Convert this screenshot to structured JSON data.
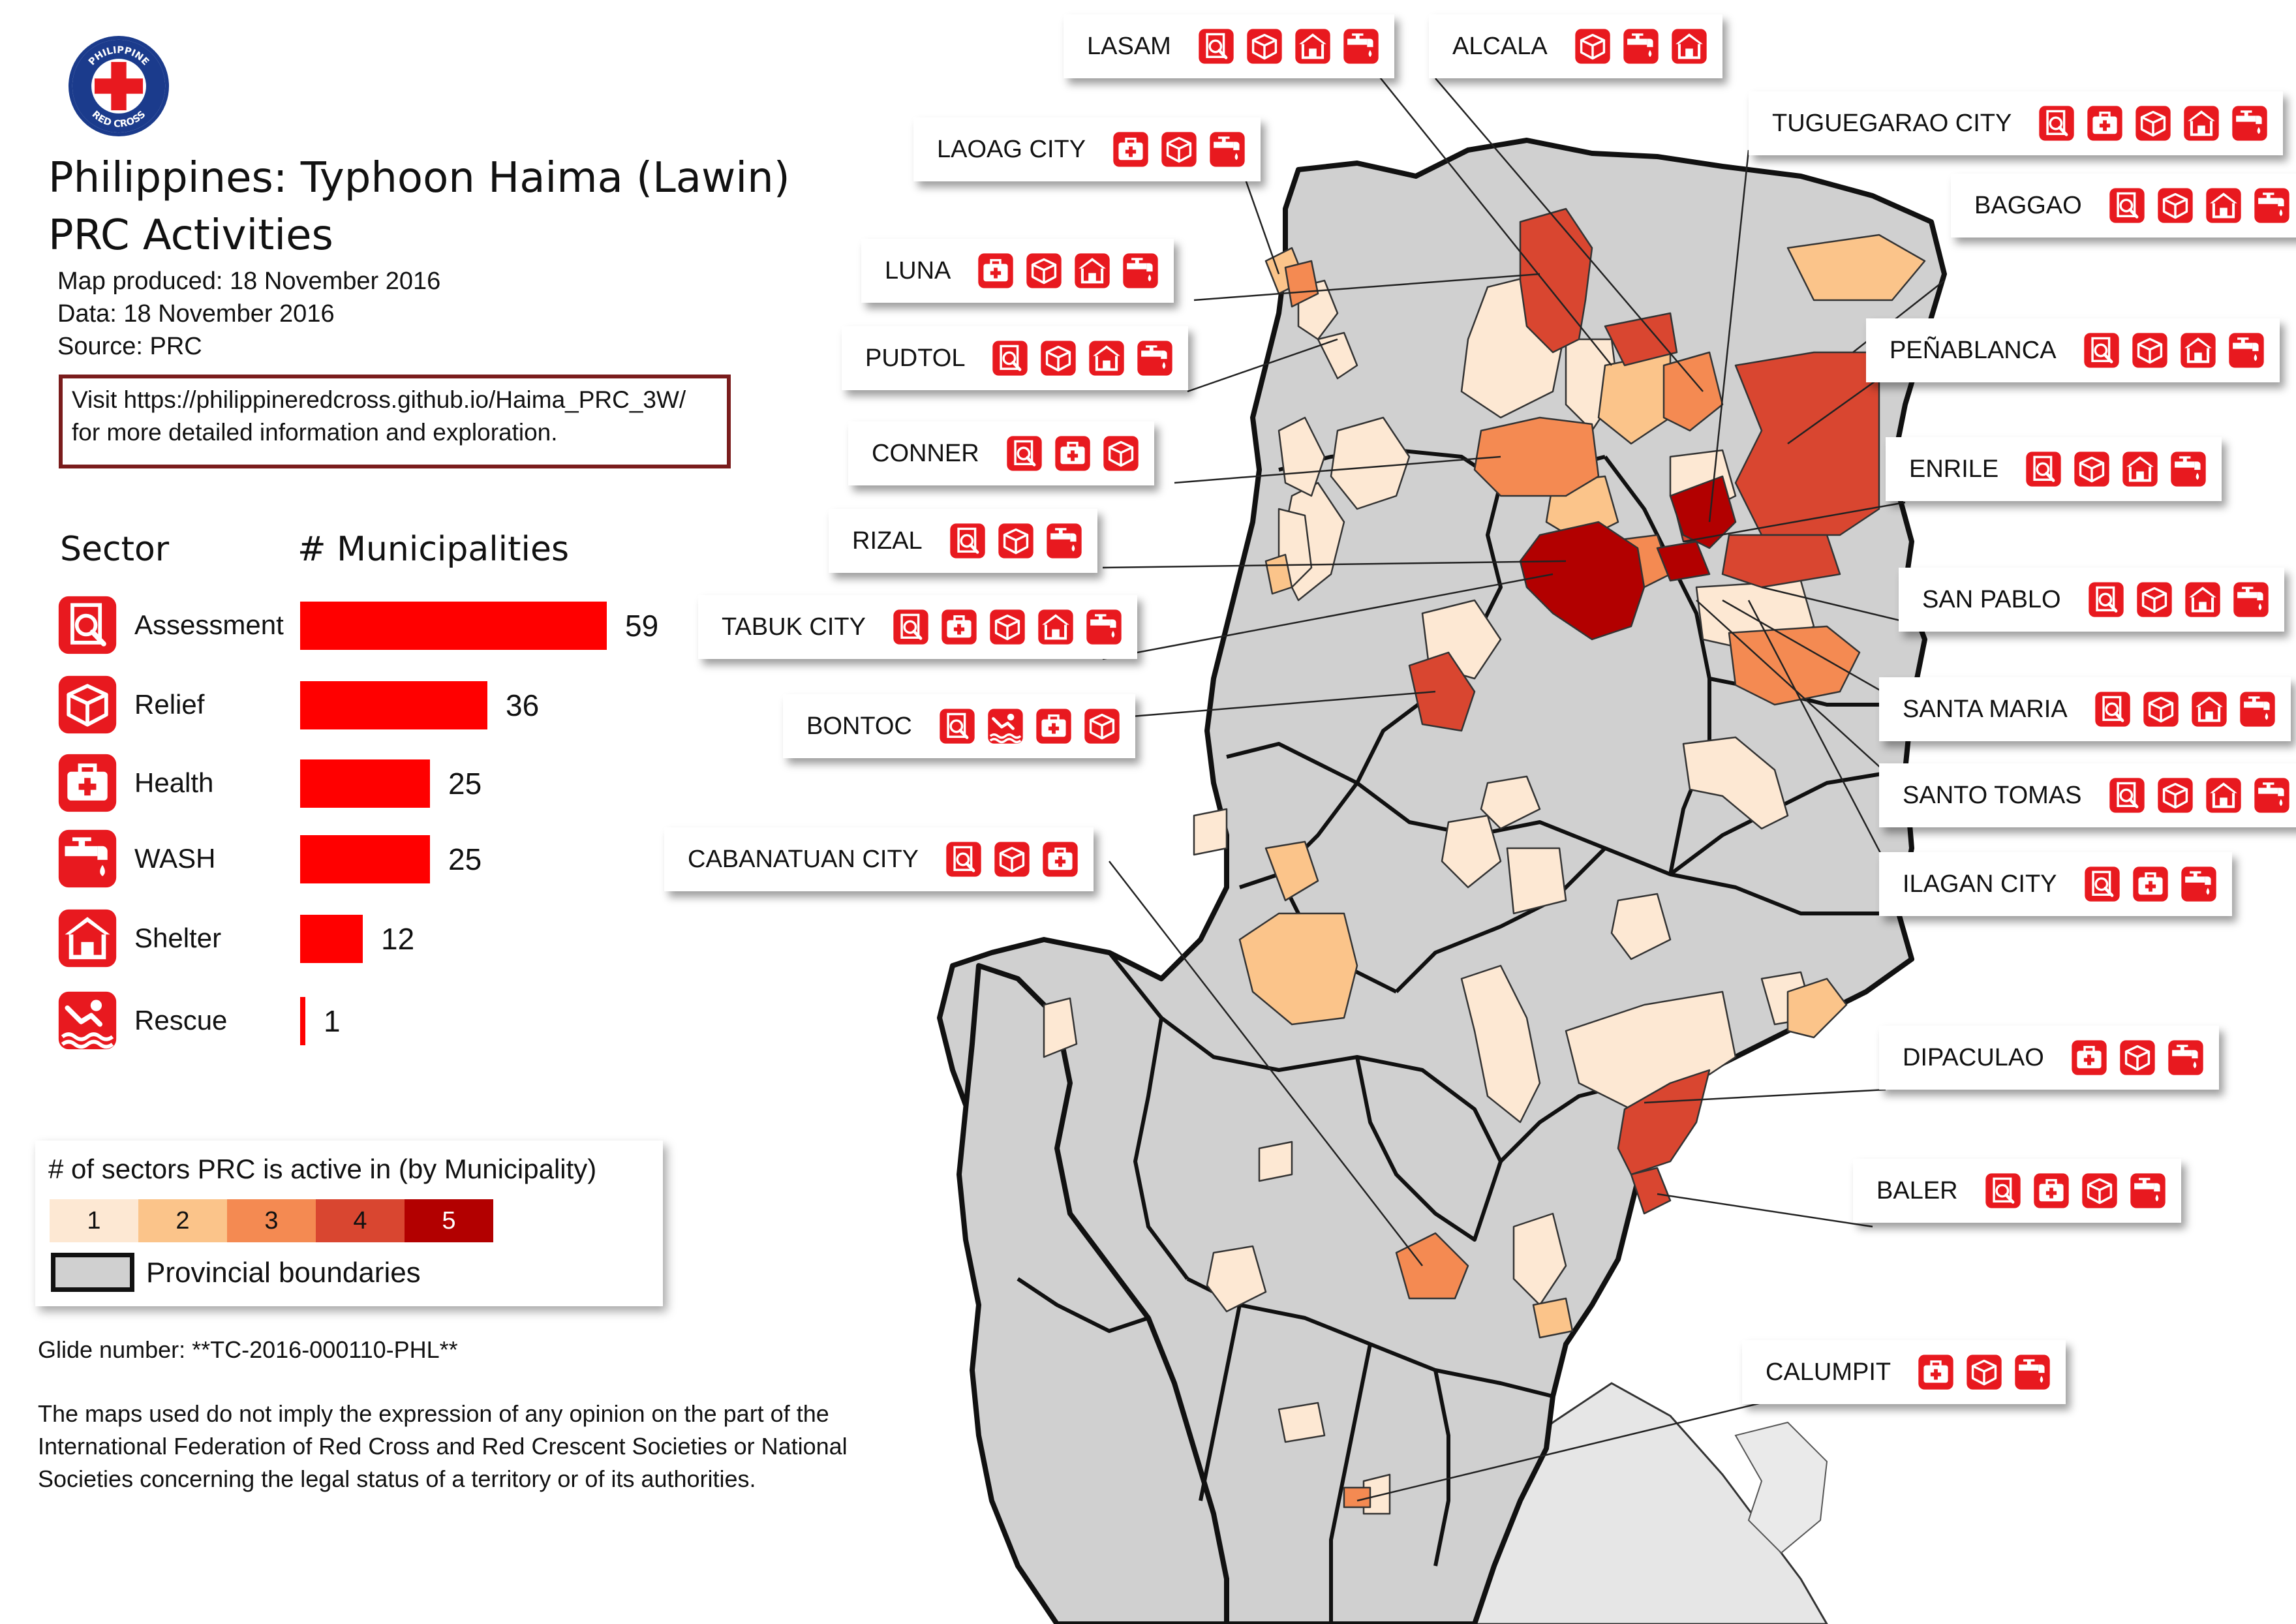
{
  "title": "Philippines: Typhoon Haima (Lawin)",
  "subtitle": "PRC Activities",
  "map_produced": "Map produced: 18 November 2016",
  "data_date": "Data: 18 November 2016",
  "source": "Source: PRC",
  "note_line1": "Visit https://philippineredcross.github.io/Haima_PRC_3W/",
  "note_line2": "for more detailed information and exploration.",
  "logo_text": "PHILIPPINE RED CROSS",
  "colors": {
    "accent": "#ff0000",
    "c1": "#fde8d3",
    "c2": "#fbc48a",
    "c3": "#f48a52",
    "c4": "#d94630",
    "c5": "#b20000",
    "province": "#d0d0d0"
  },
  "sector_chart": {
    "header_sector": "Sector",
    "header_count": "# Municipalities",
    "max": 59
  },
  "chart_data": {
    "type": "bar",
    "categories": [
      "Assessment",
      "Relief",
      "Health",
      "WASH",
      "Shelter",
      "Rescue"
    ],
    "values": [
      59,
      36,
      25,
      25,
      12,
      1
    ],
    "icons": [
      "assessment-icon",
      "relief-icon",
      "health-icon",
      "wash-icon",
      "shelter-icon",
      "rescue-icon"
    ],
    "xlabel": "# Municipalities",
    "ylabel": "Sector"
  },
  "legend": {
    "title": "# of sectors PRC is active in (by Municipality)",
    "classes": [
      "1",
      "2",
      "3",
      "4",
      "5"
    ],
    "boundary_label": "Provincial boundaries"
  },
  "glide": "Glide number: **TC-2016-000110-PHL**",
  "disclaimer": [
    "The maps used do not imply the expression of any opinion on the part of the",
    "International Federation of Red Cross and Red Crescent Societies or National",
    "Societies concerning the legal status of a territory or of its authorities."
  ],
  "callouts": [
    {
      "name": "LASAM",
      "icons": [
        "assessment",
        "relief",
        "shelter",
        "wash"
      ]
    },
    {
      "name": "ALCALA",
      "icons": [
        "relief",
        "wash",
        "shelter"
      ]
    },
    {
      "name": "LAOAG CITY",
      "icons": [
        "health",
        "relief",
        "wash"
      ]
    },
    {
      "name": "TUGUEGARAO CITY",
      "icons": [
        "assessment",
        "health",
        "relief",
        "shelter",
        "wash"
      ]
    },
    {
      "name": "BAGGAO",
      "icons": [
        "assessment",
        "relief",
        "shelter",
        "wash"
      ]
    },
    {
      "name": "LUNA",
      "icons": [
        "health",
        "relief",
        "shelter",
        "wash"
      ]
    },
    {
      "name": "PUDTOL",
      "icons": [
        "assessment",
        "relief",
        "shelter",
        "wash"
      ]
    },
    {
      "name": "PEÑABLANCA",
      "icons": [
        "assessment",
        "relief",
        "shelter",
        "wash"
      ]
    },
    {
      "name": "CONNER",
      "icons": [
        "assessment",
        "health",
        "relief"
      ]
    },
    {
      "name": "ENRILE",
      "icons": [
        "assessment",
        "relief",
        "shelter",
        "wash"
      ]
    },
    {
      "name": "RIZAL",
      "icons": [
        "assessment",
        "relief",
        "wash"
      ]
    },
    {
      "name": "SAN PABLO",
      "icons": [
        "assessment",
        "relief",
        "shelter",
        "wash"
      ]
    },
    {
      "name": "TABUK CITY",
      "icons": [
        "assessment",
        "health",
        "relief",
        "shelter",
        "wash"
      ]
    },
    {
      "name": "SANTA MARIA",
      "icons": [
        "assessment",
        "relief",
        "shelter",
        "wash"
      ]
    },
    {
      "name": "BONTOC",
      "icons": [
        "assessment",
        "rescue",
        "health",
        "relief"
      ]
    },
    {
      "name": "SANTO TOMAS",
      "icons": [
        "assessment",
        "relief",
        "shelter",
        "wash"
      ]
    },
    {
      "name": "CABANATUAN CITY",
      "icons": [
        "assessment",
        "relief",
        "health"
      ]
    },
    {
      "name": "ILAGAN CITY",
      "icons": [
        "assessment",
        "health",
        "wash"
      ]
    },
    {
      "name": "DIPACULAO",
      "icons": [
        "health",
        "relief",
        "wash"
      ]
    },
    {
      "name": "BALER",
      "icons": [
        "assessment",
        "health",
        "relief",
        "wash"
      ]
    },
    {
      "name": "CALUMPIT",
      "icons": [
        "health",
        "relief",
        "wash"
      ]
    }
  ]
}
